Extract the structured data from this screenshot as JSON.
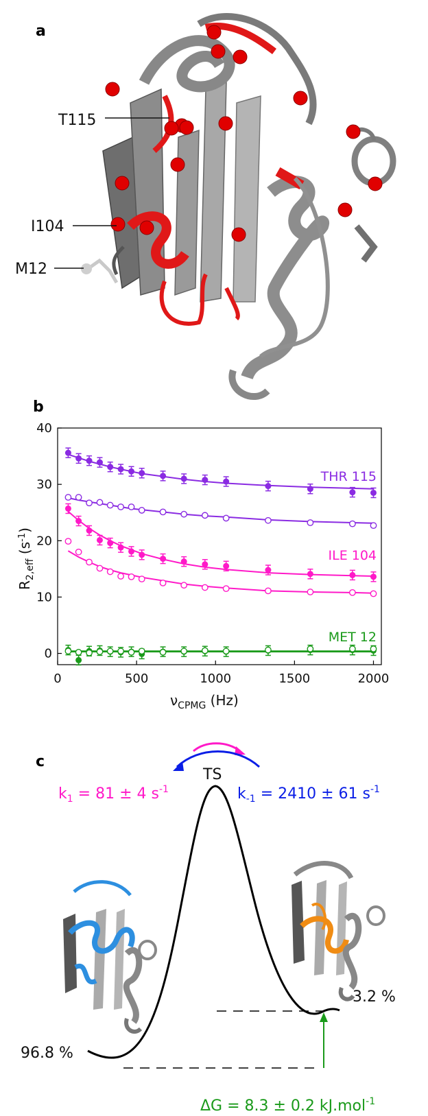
{
  "panels": {
    "a": "a",
    "b": "b",
    "c": "c"
  },
  "structure_labels": [
    "T115",
    "I104",
    "M12"
  ],
  "chart_data": {
    "type": "scatter",
    "xlabel_main": "ν",
    "xlabel_sub": "CPMG",
    "xlabel_unit": " (Hz)",
    "ylabel_main": "R",
    "ylabel_sub": "2,eff",
    "ylabel_unit": " (s",
    "ylabel_sup": "-1",
    "ylabel_close": ")",
    "xlim": [
      0,
      2050
    ],
    "ylim": [
      -2,
      40
    ],
    "xticks": [
      0,
      500,
      1000,
      1500,
      2000
    ],
    "yticks": [
      0,
      10,
      20,
      30,
      40
    ],
    "x": [
      67,
      133,
      200,
      267,
      333,
      400,
      467,
      533,
      667,
      800,
      933,
      1067,
      1333,
      1600,
      1867,
      2000
    ],
    "series": [
      {
        "name": "THR 115",
        "label_index": 0,
        "color": "#8a2be2",
        "filled": true,
        "values": [
          35.6,
          34.6,
          34.2,
          33.9,
          33.1,
          32.7,
          32.3,
          32.0,
          31.5,
          31.0,
          30.8,
          30.5,
          29.7,
          29.2,
          28.6,
          28.5
        ],
        "fit": [
          35.3,
          34.7,
          34.1,
          33.6,
          33.1,
          32.7,
          32.3,
          31.9,
          31.4,
          30.9,
          30.5,
          30.2,
          29.8,
          29.5,
          29.3,
          29.2
        ]
      },
      {
        "name": "THR 115 open",
        "label_index": -1,
        "color": "#8a2be2",
        "filled": false,
        "values": [
          27.7,
          27.7,
          26.7,
          26.8,
          26.3,
          26.0,
          26.0,
          25.4,
          25.1,
          24.7,
          24.5,
          24.0,
          23.6,
          23.2,
          23.0,
          22.7
        ],
        "fit": [
          27.6,
          27.2,
          26.9,
          26.6,
          26.3,
          26.0,
          25.7,
          25.5,
          25.1,
          24.7,
          24.4,
          24.2,
          23.7,
          23.4,
          23.2,
          23.1
        ]
      },
      {
        "name": "ILE 104",
        "label_index": 1,
        "color": "#ff19c8",
        "filled": true,
        "values": [
          25.7,
          23.5,
          21.8,
          20.1,
          19.6,
          18.8,
          18.1,
          17.5,
          16.8,
          16.3,
          15.8,
          15.5,
          14.8,
          14.1,
          13.9,
          13.6
        ],
        "fit": [
          25.2,
          23.6,
          22.2,
          21.0,
          20.0,
          19.1,
          18.4,
          17.7,
          16.7,
          15.9,
          15.3,
          14.9,
          14.3,
          14.0,
          13.8,
          13.7
        ]
      },
      {
        "name": "ILE 104 open",
        "label_index": -1,
        "color": "#ff19c8",
        "filled": false,
        "values": [
          19.9,
          18.0,
          16.2,
          15.1,
          14.5,
          13.7,
          13.6,
          13.2,
          12.5,
          12.1,
          11.7,
          11.5,
          11.1,
          10.9,
          10.8,
          10.6
        ],
        "fit": [
          18.2,
          17.1,
          16.2,
          15.4,
          14.8,
          14.3,
          13.9,
          13.5,
          12.9,
          12.3,
          11.9,
          11.6,
          11.1,
          10.9,
          10.8,
          10.7
        ]
      },
      {
        "name": "MET 12",
        "label_index": 2,
        "color": "#1a9a1a",
        "filled": true,
        "values": [
          0.6,
          -1.2,
          0.4,
          0.5,
          0.3,
          0.2,
          0.3,
          -0.1,
          0.3,
          0.3,
          0.4,
          0.3,
          0.5,
          0.6,
          0.6,
          0.5
        ],
        "fit": [
          0.3,
          0.3,
          0.3,
          0.3,
          0.3,
          0.3,
          0.3,
          0.3,
          0.3,
          0.3,
          0.3,
          0.3,
          0.3,
          0.3,
          0.3,
          0.3
        ]
      },
      {
        "name": "MET 12 open",
        "label_index": -1,
        "color": "#1a9a1a",
        "filled": false,
        "values": [
          0.4,
          0.2,
          0.1,
          0.3,
          0.4,
          0.4,
          0.2,
          0.4,
          0.2,
          0.4,
          0.5,
          0.4,
          0.6,
          0.8,
          0.8,
          0.8
        ],
        "fit": [
          0.4,
          0.4,
          0.4,
          0.4,
          0.4,
          0.4,
          0.4,
          0.4,
          0.4,
          0.4,
          0.4,
          0.4,
          0.4,
          0.4,
          0.4,
          0.4
        ]
      }
    ],
    "series_labels": [
      "THR 115",
      "ILE 104",
      "MET 12"
    ]
  },
  "energy": {
    "ts": "TS",
    "k1_main": "k",
    "k1_sub": "1",
    "k1_value": " = 81 ± 4 s",
    "k1_sup": "-1",
    "km1_main": "k",
    "km1_sub": "-1",
    "km1_value": " = 2410 ± 61 s",
    "km1_sup": "-1",
    "pop_left": "96.8 %",
    "pop_right": "3.2 %",
    "dg_main": "ΔG = 8.3 ± 0.2 kJ.mol",
    "dg_sup": "-1",
    "colors": {
      "forward": "#ff19c8",
      "backward": "#0a1ee6",
      "dg": "#1a9a1a",
      "highlight_left": "#2d8fe0",
      "highlight_right": "#f08c14"
    }
  }
}
